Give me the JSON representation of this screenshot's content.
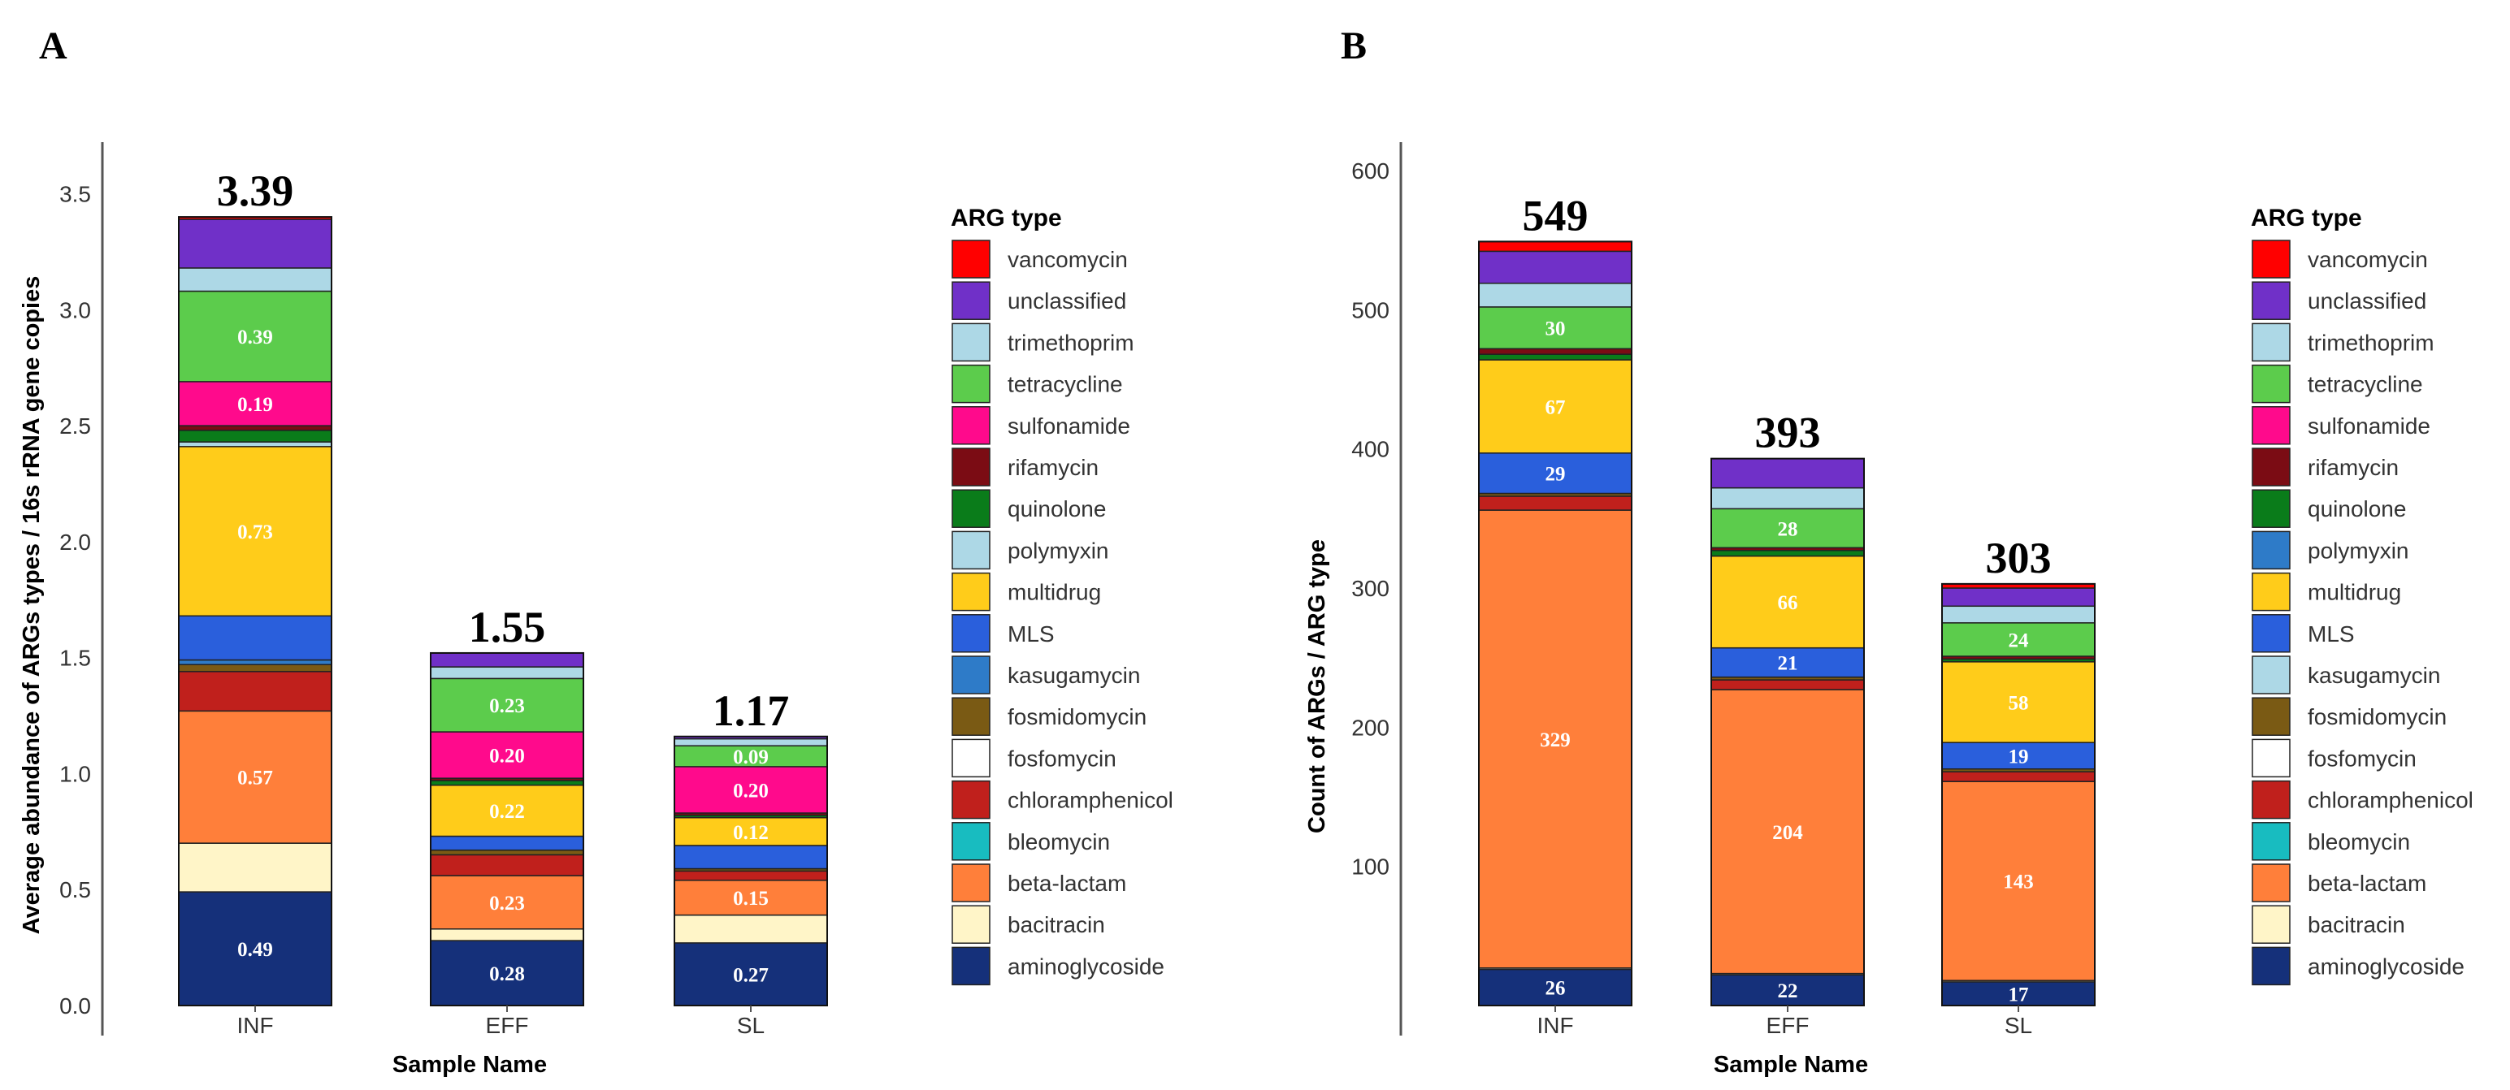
{
  "panels": [
    {
      "panel_label": "A",
      "legend_title": "ARG type",
      "legend_items": [
        {
          "name": "vancomycin",
          "color": "#ff0000"
        },
        {
          "name": "unclassified",
          "color": "#7030c8"
        },
        {
          "name": "trimethoprim",
          "color": "#add8e6"
        },
        {
          "name": "tetracycline",
          "color": "#5ccc4c"
        },
        {
          "name": "sulfonamide",
          "color": "#ff0a8c"
        },
        {
          "name": "rifamycin",
          "color": "#7b0c14"
        },
        {
          "name": "quinolone",
          "color": "#0a7c1a"
        },
        {
          "name": "polymyxin",
          "color": "#add8e6"
        },
        {
          "name": "multidrug",
          "color": "#ffcc1a"
        },
        {
          "name": "MLS",
          "color": "#2a5fdc"
        },
        {
          "name": "kasugamycin",
          "color": "#2e7bc8"
        },
        {
          "name": "fosmidomycin",
          "color": "#7a5a14"
        },
        {
          "name": "fosfomycin",
          "color": "#ffffff"
        },
        {
          "name": "chloramphenicol",
          "color": "#c0201c"
        },
        {
          "name": "bleomycin",
          "color": "#18bcc0"
        },
        {
          "name": "beta-lactam",
          "color": "#ff7f3a"
        },
        {
          "name": "bacitracin",
          "color": "#fff5c8"
        },
        {
          "name": "aminoglycoside",
          "color": "#15307a"
        }
      ],
      "chart_data": {
        "type": "bar",
        "stacked": true,
        "title": "",
        "xlabel": "Sample Name",
        "ylabel": "Average abundance of ARGs types / 16s rRNA gene copies",
        "ylim": [
          0,
          3.6
        ],
        "yticks": [
          "0.0",
          "0.5",
          "1.0",
          "1.5",
          "2.0",
          "2.5",
          "3.0",
          "3.5"
        ],
        "ytick_values": [
          0,
          0.5,
          1.0,
          1.5,
          2.0,
          2.5,
          3.0,
          3.5
        ],
        "categories": [
          "INF",
          "EFF",
          "SL"
        ],
        "totals": [
          "3.39",
          "1.55",
          "1.17"
        ],
        "grid": false,
        "legend_position": "right",
        "series": [
          {
            "name": "aminoglycoside",
            "values": [
              0.49,
              0.28,
              0.27
            ],
            "labels": [
              "0.49",
              "0.28",
              "0.27"
            ]
          },
          {
            "name": "bacitracin",
            "values": [
              0.21,
              0.05,
              0.12
            ],
            "labels": [
              "",
              "",
              ""
            ]
          },
          {
            "name": "beta-lactam",
            "values": [
              0.57,
              0.23,
              0.15
            ],
            "labels": [
              "0.57",
              "0.23",
              "0.15"
            ]
          },
          {
            "name": "bleomycin",
            "values": [
              0,
              0,
              0
            ],
            "labels": [
              "",
              "",
              ""
            ]
          },
          {
            "name": "chloramphenicol",
            "values": [
              0.17,
              0.09,
              0.04
            ],
            "labels": [
              "",
              "",
              ""
            ]
          },
          {
            "name": "fosfomycin",
            "values": [
              0,
              0,
              0
            ],
            "labels": [
              "",
              "",
              ""
            ]
          },
          {
            "name": "fosmidomycin",
            "values": [
              0.03,
              0.02,
              0.01
            ],
            "labels": [
              "",
              "",
              ""
            ]
          },
          {
            "name": "kasugamycin",
            "values": [
              0.02,
              0,
              0
            ],
            "labels": [
              "",
              "",
              ""
            ]
          },
          {
            "name": "MLS",
            "values": [
              0.19,
              0.06,
              0.1
            ],
            "labels": [
              "",
              "",
              ""
            ]
          },
          {
            "name": "multidrug",
            "values": [
              0.73,
              0.22,
              0.12
            ],
            "labels": [
              "0.73",
              "0.22",
              "0.12"
            ]
          },
          {
            "name": "polymyxin",
            "values": [
              0.02,
              0,
              0
            ],
            "labels": [
              "",
              "",
              ""
            ]
          },
          {
            "name": "quinolone",
            "values": [
              0.05,
              0.02,
              0.01
            ],
            "labels": [
              "",
              "",
              ""
            ]
          },
          {
            "name": "rifamycin",
            "values": [
              0.02,
              0.01,
              0.01
            ],
            "labels": [
              "",
              "",
              ""
            ]
          },
          {
            "name": "sulfonamide",
            "values": [
              0.19,
              0.2,
              0.2
            ],
            "labels": [
              "0.19",
              "0.20",
              "0.20"
            ]
          },
          {
            "name": "tetracycline",
            "values": [
              0.39,
              0.23,
              0.09
            ],
            "labels": [
              "0.39",
              "0.23",
              "0.09"
            ]
          },
          {
            "name": "trimethoprim",
            "values": [
              0.1,
              0.05,
              0.03
            ],
            "labels": [
              "",
              "",
              ""
            ]
          },
          {
            "name": "unclassified",
            "values": [
              0.21,
              0.06,
              0.01
            ],
            "labels": [
              "",
              "",
              ""
            ]
          },
          {
            "name": "vancomycin",
            "values": [
              0.01,
              0,
              0
            ],
            "labels": [
              "",
              "",
              ""
            ]
          }
        ]
      }
    },
    {
      "panel_label": "B",
      "legend_title": "ARG type",
      "legend_items": [
        {
          "name": "vancomycin",
          "color": "#ff0000"
        },
        {
          "name": "unclassified",
          "color": "#7030c8"
        },
        {
          "name": "trimethoprim",
          "color": "#add8e6"
        },
        {
          "name": "tetracycline",
          "color": "#5ccc4c"
        },
        {
          "name": "sulfonamide",
          "color": "#ff0a8c"
        },
        {
          "name": "rifamycin",
          "color": "#7b0c14"
        },
        {
          "name": "quinolone",
          "color": "#0a7c1a"
        },
        {
          "name": "polymyxin",
          "color": "#2e7bc8"
        },
        {
          "name": "multidrug",
          "color": "#ffcc1a"
        },
        {
          "name": "MLS",
          "color": "#2a5fdc"
        },
        {
          "name": "kasugamycin",
          "color": "#add8e6"
        },
        {
          "name": "fosmidomycin",
          "color": "#7a5a14"
        },
        {
          "name": "fosfomycin",
          "color": "#ffffff"
        },
        {
          "name": "chloramphenicol",
          "color": "#c0201c"
        },
        {
          "name": "bleomycin",
          "color": "#18bcc0"
        },
        {
          "name": "beta-lactam",
          "color": "#ff7f3a"
        },
        {
          "name": "bacitracin",
          "color": "#fff5c8"
        },
        {
          "name": "aminoglycoside",
          "color": "#15307a"
        }
      ],
      "chart_data": {
        "type": "bar",
        "stacked": true,
        "title": "",
        "xlabel": "Sample Name",
        "ylabel": "Count of ARGs / ARG type",
        "ylim": [
          0,
          600
        ],
        "yticks": [
          "100",
          "200",
          "300",
          "400",
          "500",
          "600"
        ],
        "ytick_values": [
          100,
          200,
          300,
          400,
          500,
          600
        ],
        "categories": [
          "INF",
          "EFF",
          "SL"
        ],
        "totals": [
          "549",
          "393",
          "303"
        ],
        "grid": false,
        "legend_position": "right",
        "series": [
          {
            "name": "aminoglycoside",
            "values": [
              26,
              22,
              17
            ],
            "labels": [
              "26",
              "22",
              "17"
            ]
          },
          {
            "name": "bacitracin",
            "values": [
              1,
              1,
              1
            ],
            "labels": [
              "",
              "",
              ""
            ]
          },
          {
            "name": "beta-lactam",
            "values": [
              329,
              204,
              143
            ],
            "labels": [
              "329",
              "204",
              "143"
            ]
          },
          {
            "name": "bleomycin",
            "values": [
              0,
              0,
              0
            ],
            "labels": [
              "",
              "",
              ""
            ]
          },
          {
            "name": "chloramphenicol",
            "values": [
              10,
              7,
              7
            ],
            "labels": [
              "",
              "",
              ""
            ]
          },
          {
            "name": "fosfomycin",
            "values": [
              0,
              0,
              0
            ],
            "labels": [
              "",
              "",
              ""
            ]
          },
          {
            "name": "fosmidomycin",
            "values": [
              2,
              2,
              2
            ],
            "labels": [
              "",
              "",
              ""
            ]
          },
          {
            "name": "kasugamycin",
            "values": [
              0,
              0,
              0
            ],
            "labels": [
              "",
              "",
              ""
            ]
          },
          {
            "name": "MLS",
            "values": [
              29,
              21,
              19
            ],
            "labels": [
              "29",
              "21",
              "19"
            ]
          },
          {
            "name": "multidrug",
            "values": [
              67,
              66,
              58
            ],
            "labels": [
              "67",
              "66",
              "58"
            ]
          },
          {
            "name": "polymyxin",
            "values": [
              0,
              0,
              0
            ],
            "labels": [
              "",
              "",
              ""
            ]
          },
          {
            "name": "quinolone",
            "values": [
              4,
              4,
              2
            ],
            "labels": [
              "",
              "",
              ""
            ]
          },
          {
            "name": "rifamycin",
            "values": [
              4,
              2,
              2
            ],
            "labels": [
              "",
              "",
              ""
            ]
          },
          {
            "name": "sulfonamide",
            "values": [
              0,
              0,
              0
            ],
            "labels": [
              "",
              "",
              ""
            ]
          },
          {
            "name": "tetracycline",
            "values": [
              30,
              28,
              24
            ],
            "labels": [
              "30",
              "28",
              "24"
            ]
          },
          {
            "name": "trimethoprim",
            "values": [
              17,
              15,
              12
            ],
            "labels": [
              "",
              "",
              ""
            ]
          },
          {
            "name": "unclassified",
            "values": [
              23,
              21,
              13
            ],
            "labels": [
              "",
              "",
              ""
            ]
          },
          {
            "name": "vancomycin",
            "values": [
              7,
              0,
              3
            ],
            "labels": [
              "",
              "",
              ""
            ]
          }
        ]
      }
    }
  ]
}
